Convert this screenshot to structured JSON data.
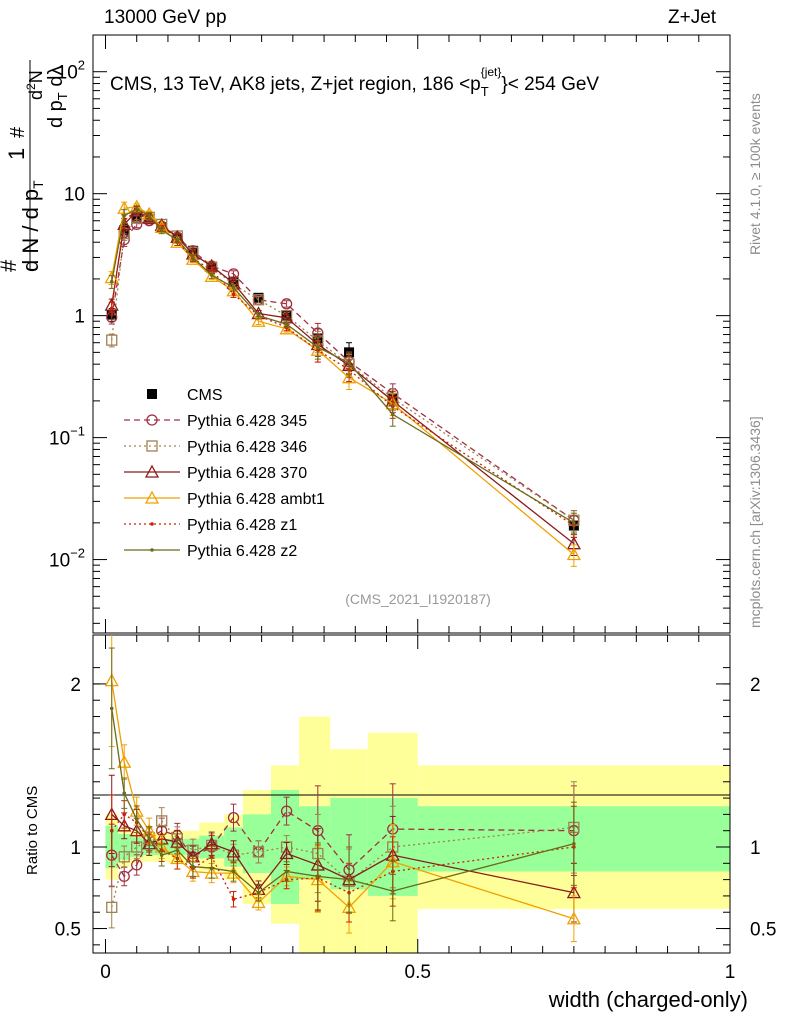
{
  "header": {
    "left": "13000 GeV pp",
    "right": "Z+Jet"
  },
  "side_labels": {
    "rivet": "Rivet 4.1.0, ≥ 100k events",
    "mcplots": "mcplots.cern.ch [arXiv:1306.3436]"
  },
  "watermark": "(CMS_2021_I1920187)",
  "chart_data": [
    {
      "type": "scatter",
      "panel": "main",
      "title": "CMS, 13 TeV, AK8 jets, Z+jet region, 186 <pT{jet}< 254 GeV",
      "title_parts": {
        "pre": "CMS, 13 TeV, AK8 jets, Z+jet region, 186 <p",
        "sub": "T",
        "sup": "{jet}",
        "post": "}< 254 GeV"
      },
      "ylabel": "1/(dN/dpT) d²N/(dpT dλ)",
      "xlabel": "width (charged-only)",
      "yscale": "log",
      "ylim": [
        0.0025,
        200
      ],
      "xlim": [
        -0.02,
        1.0
      ],
      "yticks": [
        {
          "value": 0.01,
          "base": "10",
          "exp": "−2"
        },
        {
          "value": 0.1,
          "base": "10",
          "exp": "−1"
        },
        {
          "value": 1,
          "base": "1",
          "exp": ""
        },
        {
          "value": 10,
          "base": "10",
          "exp": ""
        },
        {
          "value": 100,
          "base": "10",
          "exp": "2"
        }
      ],
      "x": [
        0.01,
        0.03,
        0.05,
        0.07,
        0.09,
        0.115,
        0.14,
        0.17,
        0.205,
        0.245,
        0.29,
        0.34,
        0.39,
        0.46,
        0.75
      ],
      "series": [
        {
          "name": "CMS",
          "color": "#000000",
          "marker": "square",
          "line": "none",
          "values": [
            1.02,
            5.0,
            6.4,
            6.2,
            5.3,
            4.3,
            3.4,
            2.5,
            1.9,
            1.4,
            1.0,
            0.65,
            0.5,
            0.21,
            0.019
          ]
        },
        {
          "name": "Pythia 6.428 345",
          "color": "#a03040",
          "marker": "circle",
          "line": "dashed",
          "values": [
            0.97,
            4.2,
            5.6,
            6.0,
            5.3,
            4.4,
            3.4,
            2.55,
            2.2,
            1.35,
            1.25,
            0.72,
            0.42,
            0.23,
            0.021
          ]
        },
        {
          "name": "Pythia 6.428 346",
          "color": "#a08050",
          "marker": "square-open",
          "line": "dotted",
          "values": [
            0.63,
            4.7,
            6.3,
            6.4,
            5.6,
            4.5,
            3.3,
            2.5,
            1.8,
            1.35,
            1.0,
            0.62,
            0.4,
            0.21,
            0.021
          ]
        },
        {
          "name": "Pythia 6.428 370",
          "color": "#8b1a1a",
          "marker": "triangle",
          "line": "solid",
          "values": [
            1.22,
            5.6,
            7.2,
            6.3,
            5.5,
            4.4,
            3.2,
            2.55,
            1.85,
            1.04,
            0.96,
            0.58,
            0.39,
            0.2,
            0.0135
          ]
        },
        {
          "name": "Pythia 6.428 ambt1",
          "color": "#f0a000",
          "marker": "triangle",
          "line": "solid",
          "values": [
            2.05,
            7.6,
            7.8,
            6.8,
            5.3,
            4.0,
            2.9,
            2.1,
            1.6,
            0.9,
            0.78,
            0.52,
            0.31,
            0.19,
            0.011
          ]
        },
        {
          "name": "Pythia 6.428 z1",
          "color": "#cc2200",
          "marker": "dot",
          "line": "dotted",
          "values": [
            1.15,
            6.0,
            7.4,
            6.5,
            5.2,
            4.0,
            2.95,
            2.35,
            1.5,
            1.0,
            0.8,
            0.52,
            0.36,
            0.18,
            0.019
          ]
        },
        {
          "name": "Pythia 6.428 z2",
          "color": "#6b6b1a",
          "marker": "dot",
          "line": "solid",
          "values": [
            1.9,
            6.6,
            7.5,
            6.6,
            5.0,
            4.2,
            3.0,
            2.15,
            1.7,
            1.0,
            0.85,
            0.55,
            0.41,
            0.155,
            0.02
          ]
        }
      ]
    },
    {
      "type": "scatter",
      "panel": "ratio",
      "ylabel": "Ratio to CMS",
      "xlabel": "width (charged-only)",
      "ylim": [
        0.35,
        2.3
      ],
      "xlim": [
        -0.02,
        1.0
      ],
      "yticks": [
        {
          "value": 0.5,
          "label": "0.5"
        },
        {
          "value": 1,
          "label": "1"
        },
        {
          "value": 2,
          "label": "2"
        }
      ],
      "xticks": [
        {
          "value": 0,
          "label": "0"
        },
        {
          "value": 0.5,
          "label": "0.5"
        },
        {
          "value": 1,
          "label": "1"
        }
      ],
      "bins": [
        0,
        0.02,
        0.04,
        0.06,
        0.08,
        0.1,
        0.13,
        0.15,
        0.19,
        0.22,
        0.265,
        0.31,
        0.36,
        0.42,
        0.5,
        1.0
      ],
      "band_green": [
        [
          0.87,
          1.13
        ],
        [
          0.92,
          1.08
        ],
        [
          0.94,
          1.06
        ],
        [
          0.95,
          1.05
        ],
        [
          0.95,
          1.05
        ],
        [
          0.95,
          1.05
        ],
        [
          0.95,
          1.05
        ],
        [
          0.93,
          1.07
        ],
        [
          0.88,
          1.12
        ],
        [
          0.84,
          1.2
        ],
        [
          0.65,
          1.35
        ],
        [
          0.8,
          1.25
        ],
        [
          0.74,
          1.3
        ],
        [
          0.7,
          1.3
        ],
        [
          0.85,
          1.25
        ]
      ],
      "band_yellow": [
        [
          0.8,
          1.2
        ],
        [
          0.88,
          1.12
        ],
        [
          0.9,
          1.1
        ],
        [
          0.91,
          1.09
        ],
        [
          0.91,
          1.09
        ],
        [
          0.9,
          1.1
        ],
        [
          0.9,
          1.1
        ],
        [
          0.85,
          1.15
        ],
        [
          0.8,
          1.2
        ],
        [
          0.65,
          1.35
        ],
        [
          0.53,
          1.5
        ],
        [
          0.3,
          1.8
        ],
        [
          0.3,
          1.6
        ],
        [
          0.3,
          1.7
        ],
        [
          0.62,
          1.5
        ]
      ],
      "x": [
        0.01,
        0.03,
        0.05,
        0.07,
        0.09,
        0.115,
        0.14,
        0.17,
        0.205,
        0.245,
        0.29,
        0.34,
        0.39,
        0.46,
        0.75
      ],
      "series": [
        {
          "name": "Pythia 6.428 345",
          "color": "#a03040",
          "marker": "circle",
          "line": "dashed",
          "values": [
            0.95,
            0.82,
            0.89,
            1.05,
            1.1,
            1.07,
            0.94,
            1.0,
            1.18,
            0.97,
            1.22,
            1.1,
            0.86,
            1.11,
            1.1
          ]
        },
        {
          "name": "Pythia 6.428 346",
          "color": "#a08050",
          "marker": "square-open",
          "line": "dotted",
          "values": [
            0.63,
            0.94,
            1.0,
            1.04,
            1.16,
            1.05,
            0.98,
            1.01,
            0.95,
            0.97,
            1.0,
            0.96,
            0.79,
            1.0,
            1.12
          ]
        },
        {
          "name": "Pythia 6.428 370",
          "color": "#8b1a1a",
          "marker": "triangle",
          "line": "solid",
          "values": [
            1.2,
            1.13,
            1.1,
            1.02,
            1.05,
            1.03,
            0.94,
            1.02,
            0.97,
            0.74,
            0.96,
            0.89,
            0.8,
            0.95,
            0.72
          ]
        },
        {
          "name": "Pythia 6.428 ambt1",
          "color": "#f0a000",
          "marker": "triangle",
          "line": "solid",
          "values": [
            2.02,
            1.52,
            1.22,
            1.1,
            1.0,
            0.93,
            0.85,
            0.84,
            0.84,
            0.66,
            0.82,
            0.8,
            0.63,
            0.91,
            0.56
          ]
        },
        {
          "name": "Pythia 6.428 z1",
          "color": "#cc2200",
          "marker": "dot",
          "line": "dotted",
          "values": [
            1.1,
            1.2,
            1.15,
            1.05,
            0.98,
            0.93,
            0.87,
            0.94,
            0.68,
            0.72,
            0.8,
            0.81,
            0.72,
            0.85,
            1.0
          ]
        },
        {
          "name": "Pythia 6.428 z2",
          "color": "#6b6b1a",
          "marker": "dot",
          "line": "solid",
          "values": [
            1.85,
            1.33,
            1.17,
            1.05,
            0.95,
            0.98,
            0.88,
            0.87,
            0.85,
            0.72,
            0.85,
            0.82,
            0.8,
            0.73,
            1.02
          ]
        }
      ]
    }
  ]
}
